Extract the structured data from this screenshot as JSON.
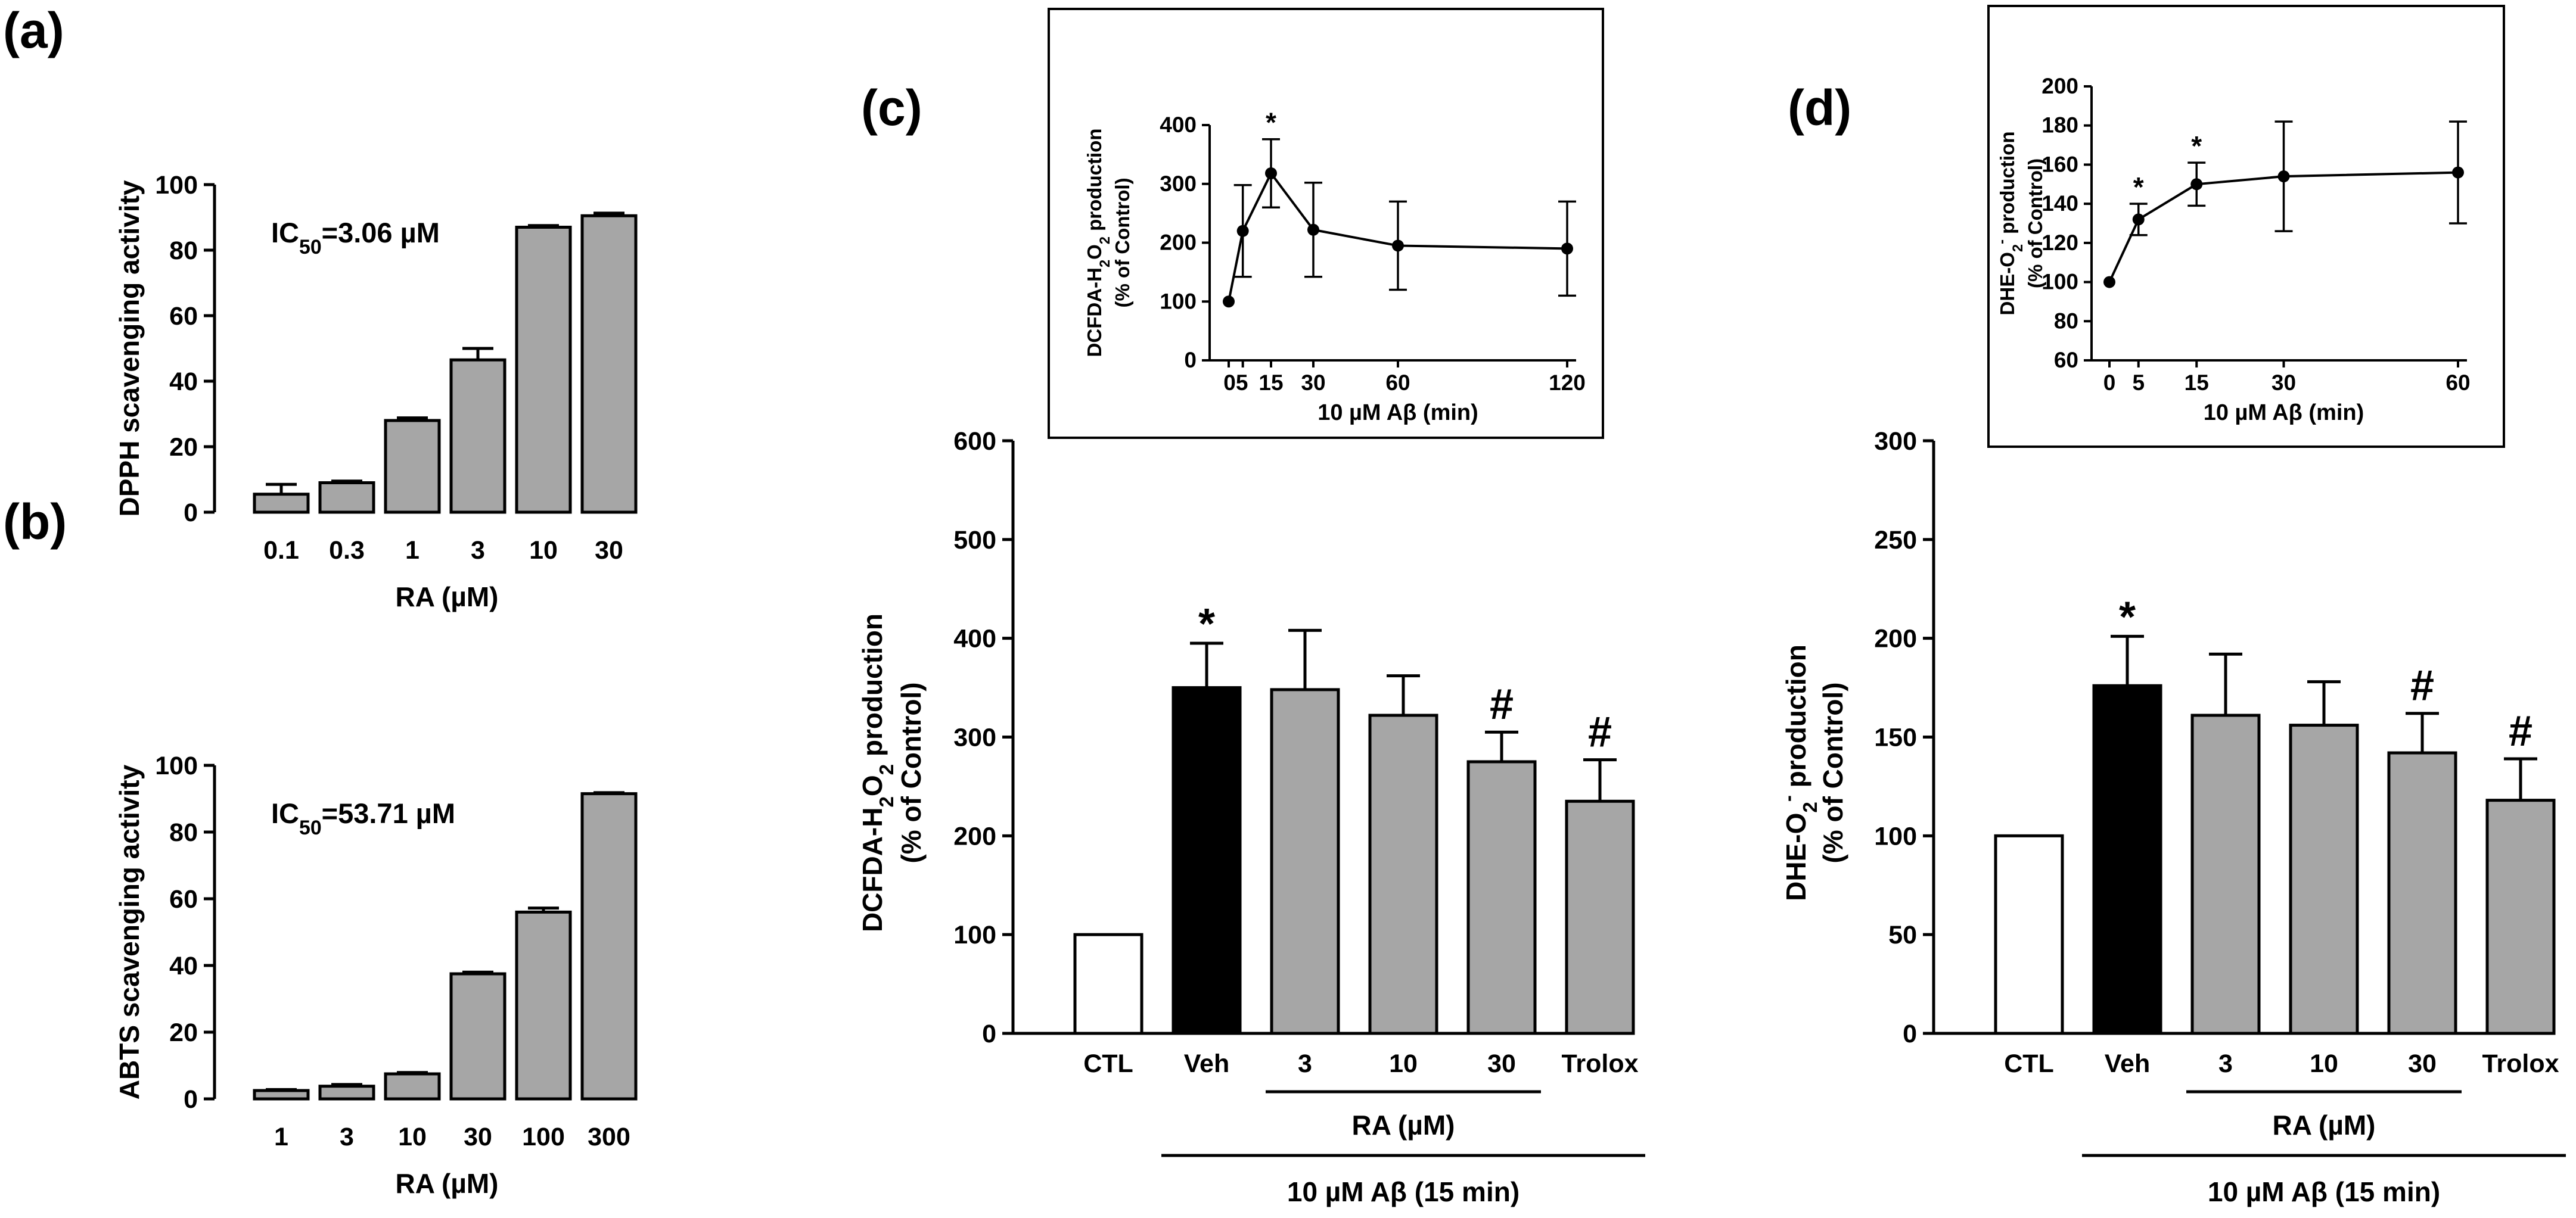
{
  "chart_data": [
    {
      "id": "a",
      "panel_label": "(a)",
      "type": "bar",
      "categories": [
        "0.1",
        "0.3",
        "1",
        "3",
        "10",
        "30"
      ],
      "values": [
        5.5,
        9,
        28,
        46.5,
        87,
        90.5
      ],
      "errors": [
        3,
        0.5,
        0.8,
        3.5,
        0.5,
        0.8
      ],
      "annotation": {
        "prefix": "IC",
        "sub": "50",
        "suffix": "=3.06 µM"
      },
      "xlabel": "RA (µM)",
      "ylabel": "DPPH scavenging activity",
      "ylim": [
        0,
        100
      ],
      "yticks": [
        "0",
        "20",
        "40",
        "60",
        "80",
        "100"
      ],
      "bar_color": "#a6a6a6"
    },
    {
      "id": "b",
      "panel_label": "(b)",
      "type": "bar",
      "categories": [
        "1",
        "3",
        "10",
        "30",
        "100",
        "300"
      ],
      "values": [
        2.5,
        3.8,
        7.5,
        37.5,
        56,
        91.5
      ],
      "errors": [
        0.3,
        0.5,
        0.4,
        0.5,
        1.2,
        0.3
      ],
      "annotation": {
        "prefix": "IC",
        "sub": "50",
        "suffix": "=53.71 µM"
      },
      "xlabel": "RA (µM)",
      "ylabel": "ABTS scavenging activity",
      "ylim": [
        0,
        100
      ],
      "yticks": [
        "0",
        "20",
        "40",
        "60",
        "80",
        "100"
      ],
      "bar_color": "#a6a6a6"
    },
    {
      "id": "c",
      "panel_label": "(c)",
      "type": "bar",
      "categories": [
        "CTL",
        "Veh",
        "3",
        "10",
        "30",
        "Trolox"
      ],
      "values": [
        100,
        350,
        348,
        322,
        275,
        235
      ],
      "errors": [
        0,
        45,
        60,
        40,
        30,
        42
      ],
      "bar_colors": [
        "#ffffff",
        "#000000",
        "#a6a6a6",
        "#a6a6a6",
        "#a6a6a6",
        "#a6a6a6"
      ],
      "significance": [
        "",
        "*",
        "",
        "",
        "#",
        "#"
      ],
      "ylim": [
        0,
        600
      ],
      "yticks": [
        "0",
        "100",
        "200",
        "300",
        "400",
        "500",
        "600"
      ],
      "ylabel": {
        "line1_parts": [
          "DCFDA-H",
          "2",
          "O",
          "2",
          " production"
        ],
        "line2": "(% of Control)"
      },
      "group_ra_label": "RA (µM)",
      "group_abeta_label": "10 µM Aβ (15 min)",
      "inset": {
        "type": "line",
        "x": [
          0,
          5,
          15,
          30,
          60,
          120
        ],
        "y": [
          100,
          220,
          318,
          222,
          195,
          190
        ],
        "errors": [
          0,
          78,
          58,
          80,
          75,
          80
        ],
        "significance": [
          "",
          "",
          "*",
          "",
          "",
          ""
        ],
        "xlim": [
          0,
          120
        ],
        "ylim": [
          0,
          400
        ],
        "xticks": [
          "05",
          "15",
          "30",
          "60",
          "120"
        ],
        "yticks": [
          "0",
          "100",
          "200",
          "300",
          "400"
        ],
        "xlabel": "10 µM Aβ (min)",
        "ylabel": {
          "line1_parts": [
            "DCFDA-H",
            "2",
            "O",
            "2",
            " production"
          ],
          "line2": "(% of Control)"
        }
      }
    },
    {
      "id": "d",
      "panel_label": "(d)",
      "type": "bar",
      "categories": [
        "CTL",
        "Veh",
        "3",
        "10",
        "30",
        "Trolox"
      ],
      "values": [
        100,
        176,
        161,
        156,
        142,
        118
      ],
      "errors": [
        0,
        25,
        31,
        22,
        20,
        21
      ],
      "bar_colors": [
        "#ffffff",
        "#000000",
        "#a6a6a6",
        "#a6a6a6",
        "#a6a6a6",
        "#a6a6a6"
      ],
      "significance": [
        "",
        "*",
        "",
        "",
        "#",
        "#"
      ],
      "ylim": [
        0,
        300
      ],
      "yticks": [
        "0",
        "50",
        "100",
        "150",
        "200",
        "250",
        "300"
      ],
      "ylabel": {
        "line1_parts": [
          "DHE-O",
          "2",
          "-",
          " production"
        ],
        "line2": "(% of Control)"
      },
      "group_ra_label": "RA (µM)",
      "group_abeta_label": "10 µM Aβ (15 min)",
      "inset": {
        "type": "line",
        "x": [
          0,
          5,
          15,
          30,
          60
        ],
        "y": [
          100,
          132,
          150,
          154,
          156
        ],
        "errors": [
          0,
          8,
          11,
          28,
          26
        ],
        "significance": [
          "",
          "*",
          "*",
          "",
          ""
        ],
        "xlim": [
          0,
          60
        ],
        "ylim": [
          60,
          200
        ],
        "xticks": [
          "0",
          "5",
          "15",
          "30",
          "60"
        ],
        "yticks": [
          "60",
          "80",
          "100",
          "120",
          "140",
          "160",
          "180",
          "200"
        ],
        "xlabel": "10 µM Aβ (min)",
        "ylabel": {
          "line1_parts": [
            "DHE-O",
            "2",
            "-",
            " production"
          ],
          "line2": "(% of Control)"
        }
      }
    }
  ]
}
